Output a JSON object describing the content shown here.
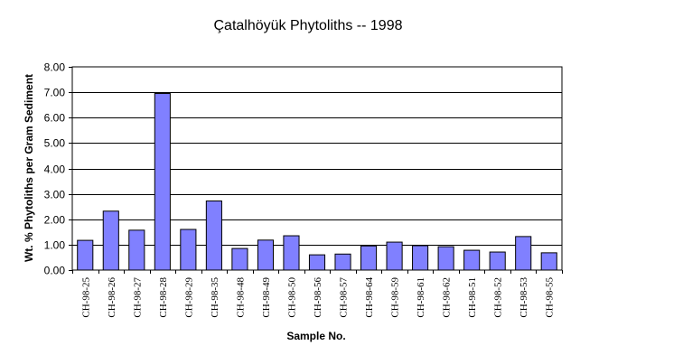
{
  "chart_data": {
    "type": "bar",
    "title": "Çatalhöyük Phytoliths -- 1998",
    "xlabel": "Sample No.",
    "ylabel": "Wt. % Phytoliths per Gram Sediment",
    "ylim": [
      0,
      8
    ],
    "yticks": [
      "0.00",
      "1.00",
      "2.00",
      "3.00",
      "4.00",
      "5.00",
      "6.00",
      "7.00",
      "8.00"
    ],
    "grid": true,
    "legend": "none",
    "bar_color": "#8080ff",
    "categories": [
      "CH-98-25",
      "CH-98-26",
      "CH-98-27",
      "CH-98-28",
      "CH-98-29",
      "CH-98-35",
      "CH-98-48",
      "CH-98-49",
      "CH-98-50",
      "CH-98-56",
      "CH-98-57",
      "CH-98-64",
      "CH-98-59",
      "CH-98-61",
      "CH-98-62",
      "CH-98-51",
      "CH-98-52",
      "CH-98-53",
      "CH-98-55"
    ],
    "values": [
      1.17,
      2.32,
      1.57,
      6.95,
      1.6,
      2.72,
      0.85,
      1.18,
      1.35,
      0.6,
      0.63,
      0.95,
      1.1,
      0.96,
      0.92,
      0.78,
      0.71,
      1.32,
      0.68
    ]
  }
}
